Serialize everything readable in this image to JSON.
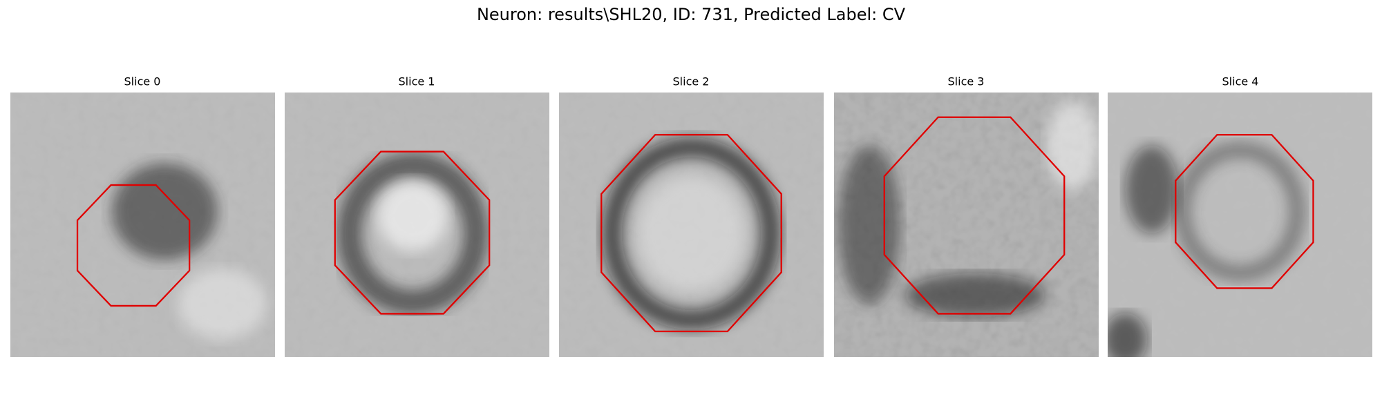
{
  "header": {
    "title": "Neuron: results\\SHL20, ID: 731, Predicted Label: CV"
  },
  "panels": [
    {
      "title": "Slice 0"
    },
    {
      "title": "Slice 1"
    },
    {
      "title": "Slice 2"
    },
    {
      "title": "Slice 3"
    },
    {
      "title": "Slice 4"
    }
  ]
}
